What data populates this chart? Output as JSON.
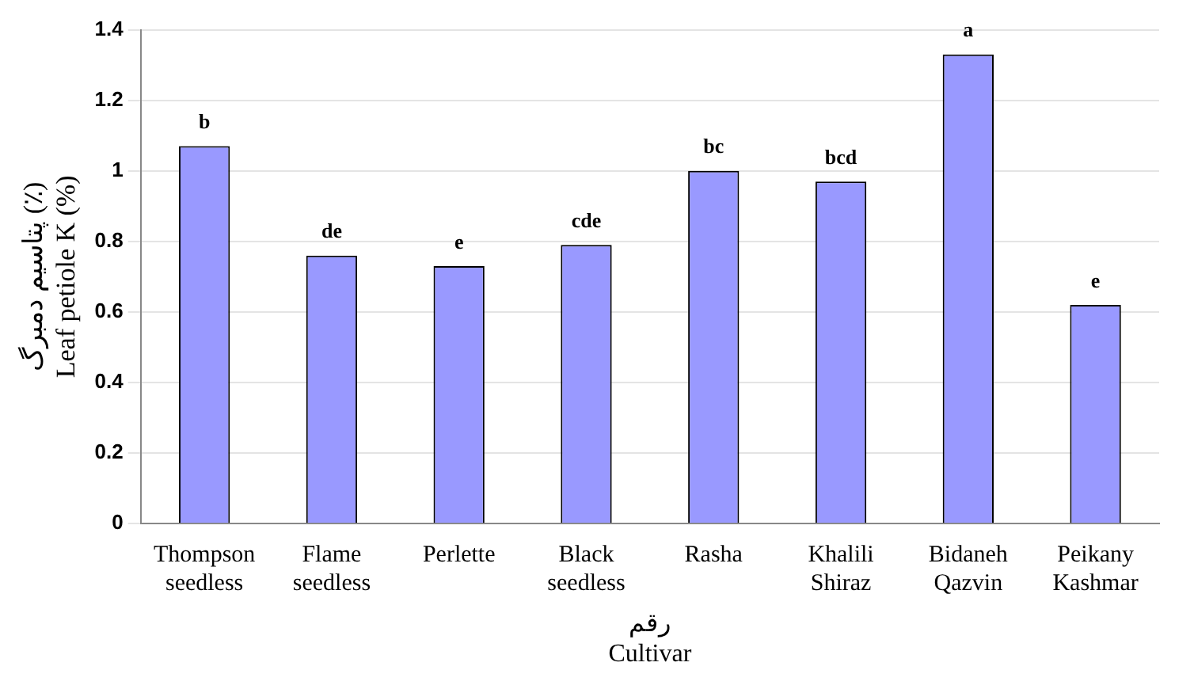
{
  "chart_data": {
    "type": "bar",
    "xlabel": "رقم\nCultivar",
    "ylabel": "پتاسیم دمبرگ (٪)\nLeaf petiole K (%)",
    "categories": [
      "Thompson seedless",
      "Flame seedless",
      "Perlette",
      "Black seedless",
      "Rasha",
      "Khalili Shiraz",
      "Bidaneh Qazvin",
      "Peikany Kashmar"
    ],
    "values": [
      1.07,
      0.76,
      0.73,
      0.79,
      1.0,
      0.97,
      1.33,
      0.62
    ],
    "color": "#9999ff",
    "ylim": [
      0,
      1.4
    ],
    "yticks": [
      0,
      {
        "value": 0.2,
        "label": "0.2"
      },
      {
        "value": 0.4,
        "label": "0.4"
      },
      {
        "value": 0.6,
        "label": "0.6"
      },
      {
        "value": 0.8,
        "label": "0.8"
      },
      1,
      {
        "value": 1.2,
        "label": "1.2"
      },
      {
        "value": 1.4,
        "label": "1.4"
      }
    ],
    "grid": "y",
    "legend": false,
    "annotations": [
      {
        "text": "b",
        "x": "Thompson seedless",
        "y": 1.07
      },
      {
        "text": "de",
        "x": "Flame seedless",
        "y": 0.76
      },
      {
        "text": "e",
        "x": "Perlette",
        "y": 0.73
      },
      {
        "text": "cde",
        "x": "Black seedless",
        "y": 0.79
      },
      {
        "text": "bc",
        "x": "Rasha",
        "y": 1.0
      },
      {
        "text": "bcd",
        "x": "Khalili Shiraz",
        "y": 0.97
      },
      {
        "text": "a",
        "x": "Bidaneh Qazvin",
        "y": 1.33
      },
      {
        "text": "e",
        "x": "Peikany Kashmar",
        "y": 0.62
      }
    ]
  }
}
